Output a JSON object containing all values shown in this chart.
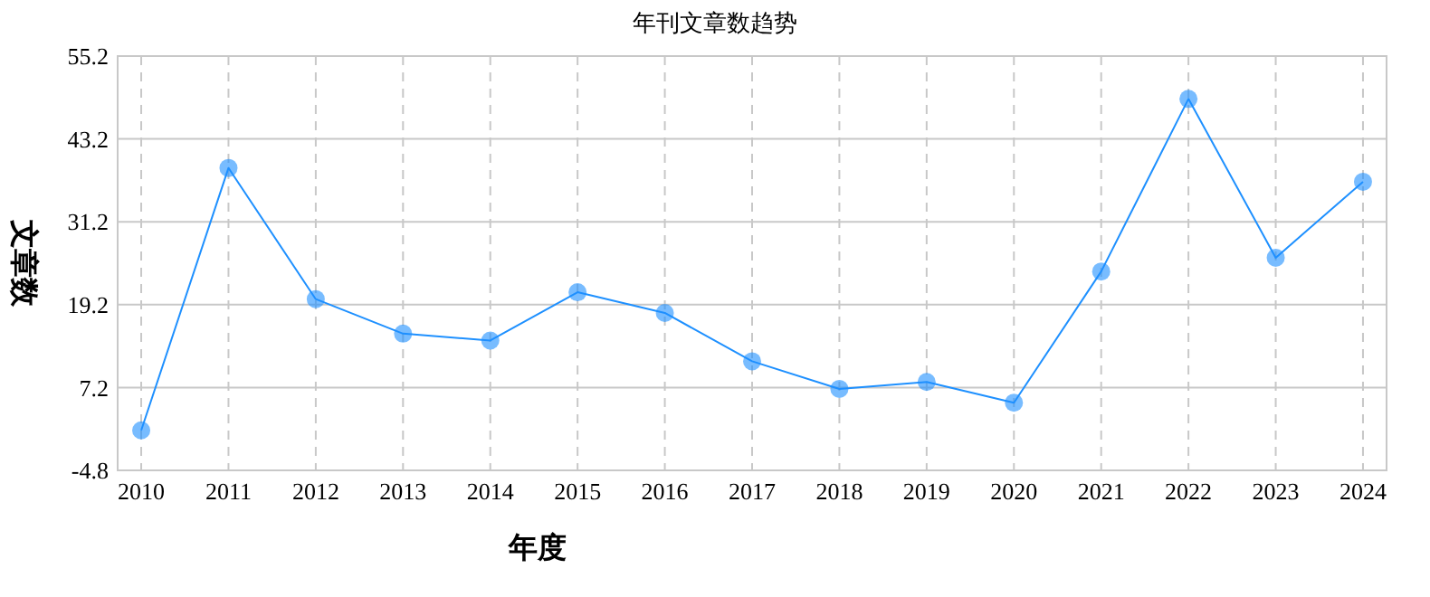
{
  "chart_data": {
    "type": "line",
    "title": "年刊文章数趋势",
    "xlabel": "年度",
    "ylabel": "文章数",
    "categories": [
      "2010",
      "2011",
      "2012",
      "2013",
      "2014",
      "2015",
      "2016",
      "2017",
      "2018",
      "2019",
      "2020",
      "2021",
      "2022",
      "2023",
      "2024"
    ],
    "series": [
      {
        "color": "#1e90ff",
        "values": [
          1,
          39,
          20,
          15,
          14,
          21,
          18,
          11,
          7,
          8,
          5,
          24,
          49,
          26,
          37
        ]
      }
    ],
    "ylim": [
      -4.8,
      55.2
    ],
    "yticks": [
      -4.8,
      7.2,
      19.2,
      31.2,
      43.2,
      55.2
    ],
    "grid": true,
    "marker": "circle",
    "line_style": "solid"
  }
}
